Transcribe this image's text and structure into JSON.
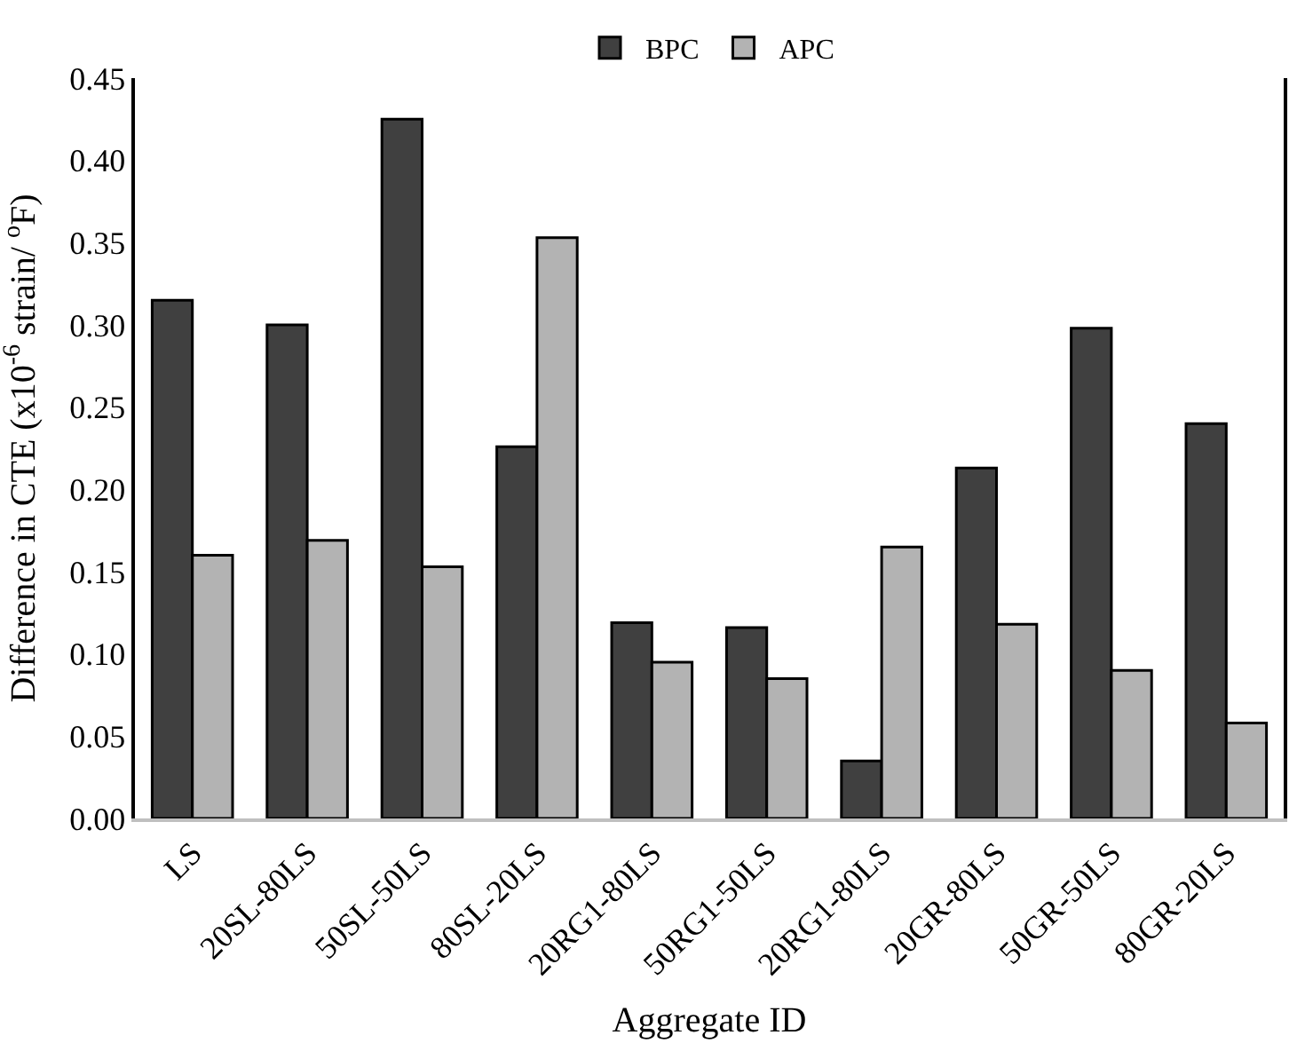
{
  "chart_data": {
    "type": "bar",
    "xlabel": "Aggregate ID",
    "ylabel": "Difference in CTE (x10$^{-6}$ strain/ $^{o}$F)",
    "categories": [
      "LS",
      "20SL-80LS",
      "50SL-50LS",
      "80SL-20LS",
      "20RG1-80LS",
      "50RG1-50LS",
      "20RG1-80LS",
      "20GR-80LS",
      "50GR-50LS",
      "80GR-20LS"
    ],
    "series": [
      {
        "name": "BPC",
        "color": "#404040",
        "values": [
          0.315,
          0.3,
          0.425,
          0.226,
          0.119,
          0.116,
          0.035,
          0.213,
          0.298,
          0.24
        ]
      },
      {
        "name": "APC",
        "color": "#b3b3b3",
        "values": [
          0.16,
          0.169,
          0.153,
          0.353,
          0.095,
          0.085,
          0.165,
          0.118,
          0.09,
          0.058
        ]
      }
    ],
    "ylim": [
      0,
      0.45
    ],
    "yticks": [
      {
        "value": 0,
        "label": "0.00"
      },
      {
        "value": 0.05,
        "label": "0.05"
      },
      {
        "value": 0.1,
        "label": "0.10"
      },
      {
        "value": 0.15,
        "label": "0.15"
      },
      {
        "value": 0.2,
        "label": "0.20"
      },
      {
        "value": 0.25,
        "label": "0.25"
      },
      {
        "value": 0.3,
        "label": "0.30"
      },
      {
        "value": 0.35,
        "label": "0.35"
      },
      {
        "value": 0.4,
        "label": "0.40"
      },
      {
        "value": 0.45,
        "label": "0.45"
      }
    ],
    "legend": "top"
  }
}
